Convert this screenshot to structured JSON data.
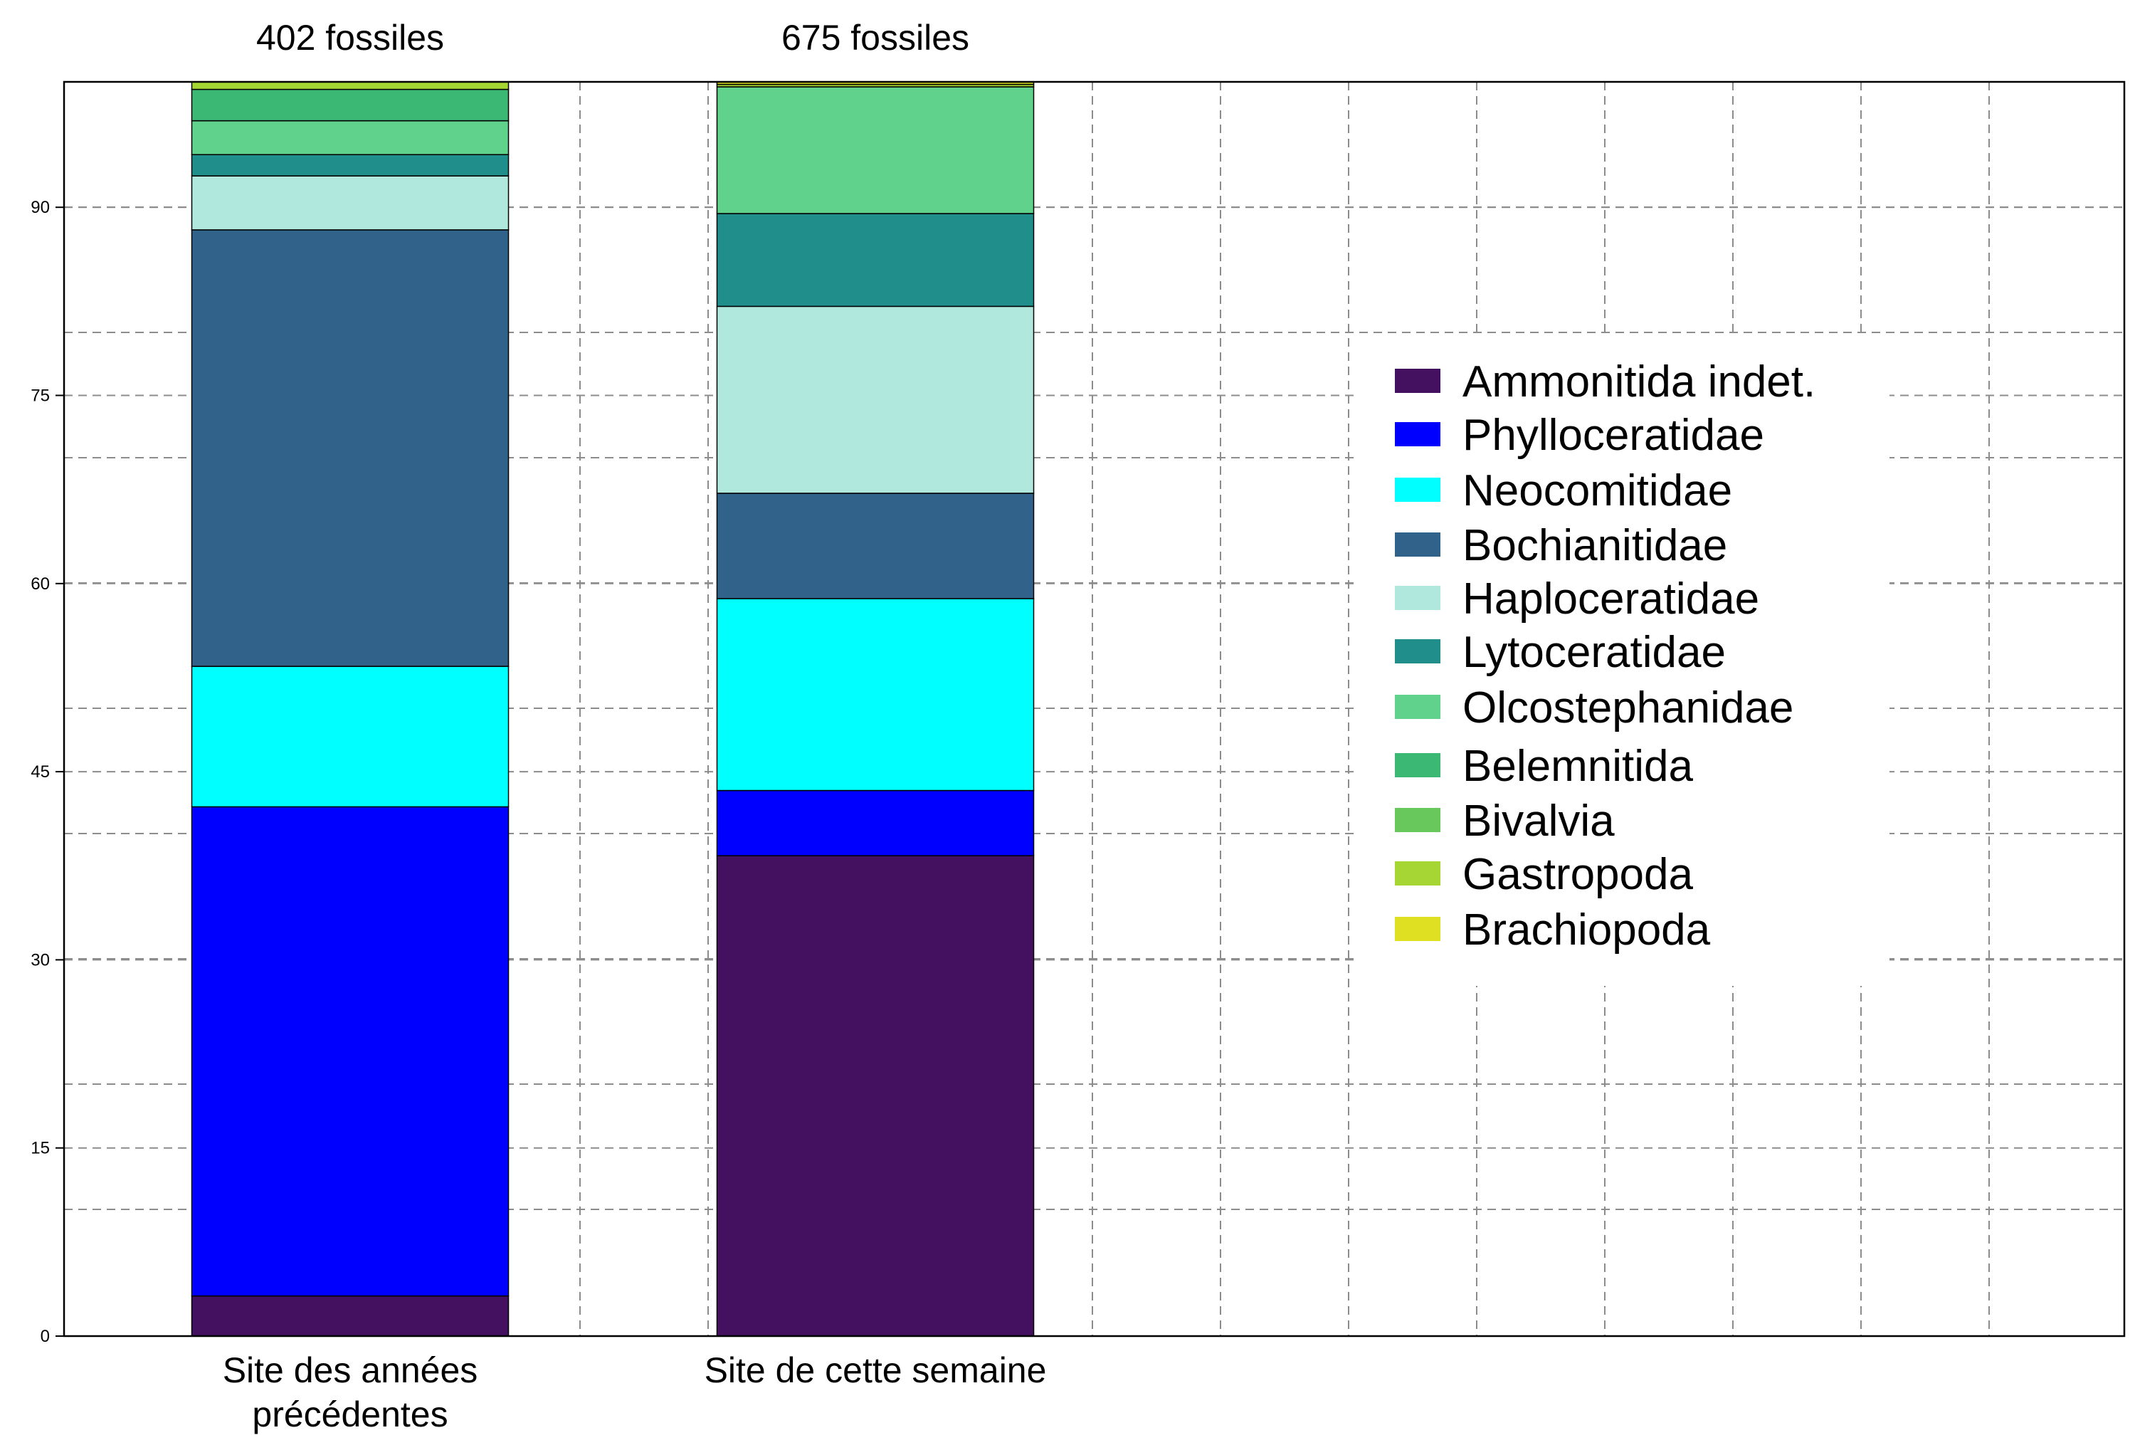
{
  "chart_data": {
    "type": "bar",
    "stacked": true,
    "categories": [
      "Site des années\nprécédentes",
      "Site de cette semaine"
    ],
    "bar_totals": [
      "402 fossiles",
      "675 fossiles"
    ],
    "ylim": [
      0,
      100
    ],
    "yticks": [
      0,
      15,
      30,
      45,
      60,
      75,
      90
    ],
    "grid": true,
    "grid_style": "dashed",
    "legend_position": "right",
    "series": [
      {
        "name": "Ammonitida indet.",
        "color": "#441160",
        "values": [
          3.2,
          38.3
        ]
      },
      {
        "name": "Phylloceratidae",
        "color": "#0000ff",
        "values": [
          39.0,
          5.2
        ]
      },
      {
        "name": "Neocomitidae",
        "color": "#00ffff",
        "values": [
          11.2,
          15.3
        ]
      },
      {
        "name": "Bochianitidae",
        "color": "#31628a",
        "values": [
          34.8,
          8.4
        ]
      },
      {
        "name": "Haploceratidae",
        "color": "#b0e8dd",
        "values": [
          4.3,
          14.9
        ]
      },
      {
        "name": "Lytoceratidae",
        "color": "#208f8b",
        "values": [
          1.7,
          7.4
        ]
      },
      {
        "name": "Olcostephanidae",
        "color": "#60d28c",
        "values": [
          2.7,
          10.1
        ]
      },
      {
        "name": "Belemnitida",
        "color": "#3bb874",
        "values": [
          2.5,
          0.0
        ]
      },
      {
        "name": "Bivalvia",
        "color": "#69c85c",
        "values": [
          0.0,
          0.0
        ]
      },
      {
        "name": "Gastropoda",
        "color": "#a6d634",
        "values": [
          0.6,
          0.2
        ]
      },
      {
        "name": "Brachiopoda",
        "color": "#dfe022",
        "values": [
          0.0,
          0.2
        ]
      }
    ]
  }
}
